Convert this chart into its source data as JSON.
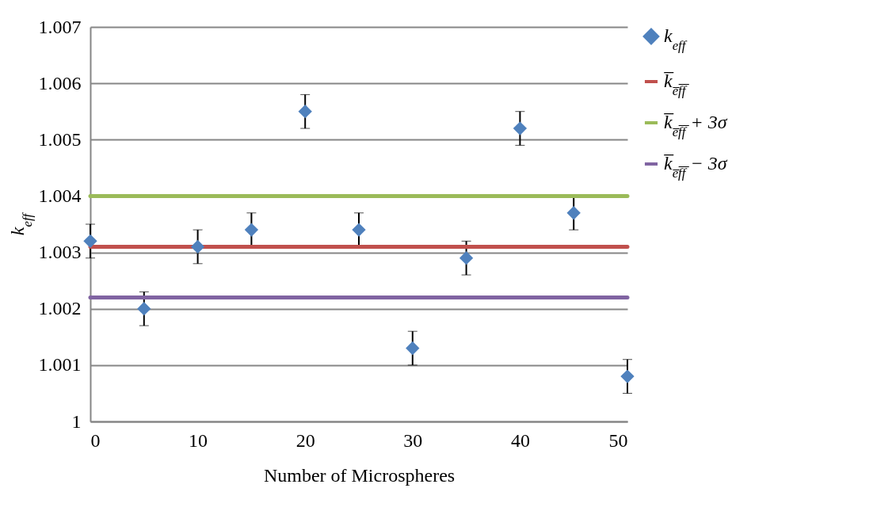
{
  "chart_data": {
    "type": "scatter",
    "xlabel": "Number of Microspheres",
    "ylabel": "k$_{eff}$",
    "x": [
      0,
      5,
      10,
      15,
      20,
      25,
      30,
      35,
      40,
      45,
      50
    ],
    "series": [
      {
        "name": "k$_{eff}$",
        "color": "#4f81bd",
        "type": "scatter",
        "marker": "diamond",
        "values": [
          1.0032,
          1.002,
          1.0031,
          1.0034,
          1.0055,
          1.0034,
          1.0013,
          1.0029,
          1.0052,
          1.0037,
          1.0008
        ],
        "errors": [
          0.0003,
          0.0003,
          0.0003,
          0.0003,
          0.0003,
          0.0003,
          0.0003,
          0.0003,
          0.0003,
          0.0003,
          0.0003
        ]
      }
    ],
    "ref_lines": [
      {
        "axis": "y",
        "value": 1.0031,
        "label": "k̅$_{e̅f̅f̅}$",
        "color": "#c0504d",
        "line_style": "solid"
      },
      {
        "axis": "y",
        "value": 1.004,
        "label": "k̅$_{e̅f̅f̅}$ + 3σ",
        "color": "#9bbb59",
        "line_style": "solid"
      },
      {
        "axis": "y",
        "value": 1.0022,
        "label": "k̅$_{e̅f̅f̅}$ − 3σ",
        "color": "#8064a2",
        "line_style": "solid"
      }
    ],
    "xlim": [
      0,
      50
    ],
    "xticks": [
      0,
      10,
      20,
      30,
      40,
      50
    ],
    "ylim": [
      1,
      1.007
    ],
    "yticks": [
      1,
      1.001,
      1.002,
      1.003,
      1.004,
      1.005,
      1.006,
      1.007
    ],
    "grid": "y",
    "legend": "right"
  }
}
